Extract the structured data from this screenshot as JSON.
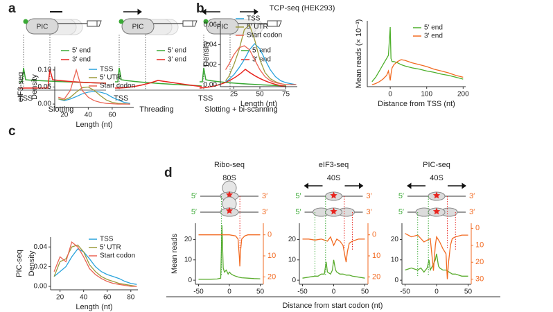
{
  "panel_labels": [
    "a",
    "b",
    "c",
    "d"
  ],
  "panel_a": {
    "items": [
      {
        "caption": "Slotting"
      },
      {
        "caption": "Threading"
      },
      {
        "caption": "Slotting + bi-scanning"
      }
    ],
    "complex_label": "PIC",
    "site_label": "TSS",
    "legend": [
      {
        "name": "5′ end",
        "color": "#3aa935"
      },
      {
        "name": "3′ end",
        "color": "#e8251f"
      }
    ]
  },
  "panel_b": {
    "title": "TCP-seq (HEK293)"
  },
  "panel_d": {
    "xlabel": "Distance from start codon (nt)",
    "strand_labels": [
      "5′",
      "3′"
    ]
  },
  "chart_data": [
    {
      "type": "line",
      "ylabel": "Density",
      "xlabel": "Length (nt)",
      "xlim": [
        12,
        86
      ],
      "ylim": [
        -0.002,
        0.064
      ],
      "xticks": [
        25,
        50,
        75
      ],
      "yticks": [
        {
          "value": 0,
          "label": "0.00"
        },
        0.02,
        0.04,
        0.06
      ],
      "legend": "top-right",
      "x": [
        17,
        20,
        25,
        30,
        35,
        40,
        45,
        50,
        55,
        60,
        65,
        70,
        75,
        80,
        85
      ],
      "series": [
        {
          "name": "TSS",
          "color": "#29a3dc",
          "values": [
            0.003,
            0.005,
            0.01,
            0.017,
            0.025,
            0.035,
            0.041,
            0.036,
            0.025,
            0.015,
            0.008,
            0.004,
            0.002,
            0.001,
            0.0
          ]
        },
        {
          "name": "5′ UTR",
          "color": "#9c9a3c",
          "values": [
            0.004,
            0.008,
            0.02,
            0.035,
            0.055,
            0.06,
            0.045,
            0.025,
            0.012,
            0.006,
            0.003,
            0.001,
            0,
            0,
            0
          ]
        },
        {
          "name": "Start codon",
          "color": "#ea6352",
          "values": [
            0.015,
            0.02,
            0.03,
            0.037,
            0.039,
            0.035,
            0.025,
            0.015,
            0.008,
            0.004,
            0.002,
            0.001,
            0,
            0,
            0
          ]
        }
      ]
    },
    {
      "type": "line",
      "ylabel": "Mean reads (× 10⁻³)",
      "xlabel": "Distance from TSS (nt)",
      "xlim": [
        -63,
        207
      ],
      "ylim": [
        0,
        10.5
      ],
      "xticks": [
        0,
        100,
        200
      ],
      "legend": "top-right",
      "x": [
        -50,
        -40,
        -30,
        -20,
        -10,
        -5,
        0,
        2,
        5,
        10,
        20,
        30,
        40,
        60,
        80,
        100,
        120,
        140,
        160,
        180,
        200
      ],
      "series": [
        {
          "name": "5′ end",
          "color": "#4caf2a",
          "values": [
            0.8,
            1.5,
            2.5,
            3.5,
            4.5,
            5,
            9.5,
            4.5,
            4,
            4,
            3.8,
            3.5,
            3.3,
            3,
            2.8,
            2.5,
            2.3,
            2,
            1.8,
            1.5,
            1.2
          ]
        },
        {
          "name": "3′ end",
          "color": "#f26a21",
          "values": [
            0.3,
            0.5,
            0.8,
            1.2,
            1.8,
            2.5,
            1,
            2,
            3,
            3.5,
            4,
            4.3,
            4.2,
            3.8,
            3.5,
            3.2,
            2.8,
            2.5,
            2.2,
            1.8,
            1.5
          ]
        }
      ]
    },
    {
      "type": "line",
      "title": "eIF3-seq",
      "ylabel": "Density",
      "xlabel": "Length (nt)",
      "xlim": [
        12,
        78
      ],
      "ylim": [
        -0.01,
        0.11
      ],
      "xticks": [
        20,
        40,
        60
      ],
      "yticks": [
        {
          "value": 0,
          "label": "0.00"
        },
        0.05,
        {
          "value": 0.1,
          "label": "0.10"
        }
      ],
      "legend": "top-right",
      "x": [
        15,
        20,
        25,
        30,
        35,
        40,
        45,
        50,
        55,
        60,
        65,
        70,
        75
      ],
      "series": [
        {
          "name": "TSS",
          "color": "#29a3dc",
          "values": [
            0.015,
            0.01,
            0.015,
            0.022,
            0.03,
            0.035,
            0.037,
            0.035,
            0.03,
            0.02,
            0.012,
            0.005,
            0.002
          ]
        },
        {
          "name": "5′ UTR",
          "color": "#9c9a3c",
          "values": [
            0.015,
            0.012,
            0.02,
            0.035,
            0.048,
            0.05,
            0.04,
            0.025,
            0.012,
            0.005,
            0.002,
            0.001,
            0
          ]
        },
        {
          "name": "Start codon",
          "color": "#ea6352",
          "values": [
            0.02,
            0.015,
            0.04,
            0.1,
            0.04,
            0.02,
            0.01,
            0.005,
            0.002,
            0.001,
            0,
            0,
            0
          ]
        }
      ]
    },
    {
      "type": "line",
      "title": "PIC-seq",
      "ylabel": "Density",
      "xlabel": "Length (nt)",
      "xlim": [
        12,
        86
      ],
      "ylim": [
        -0.0035,
        0.05
      ],
      "xticks": [
        20,
        40,
        60,
        80
      ],
      "yticks": [
        {
          "value": 0,
          "label": "0.00"
        },
        0.02,
        0.04
      ],
      "legend": "top-right",
      "x": [
        15,
        20,
        25,
        30,
        35,
        40,
        45,
        50,
        55,
        60,
        65,
        70,
        75,
        80,
        85
      ],
      "series": [
        {
          "name": "TSS",
          "color": "#29a3dc",
          "values": [
            0.01,
            0.015,
            0.02,
            0.03,
            0.038,
            0.035,
            0.028,
            0.02,
            0.015,
            0.012,
            0.01,
            0.008,
            0.005,
            0.003,
            0.002
          ]
        },
        {
          "name": "5′ UTR",
          "color": "#9c9a3c",
          "values": [
            0.01,
            0.025,
            0.028,
            0.04,
            0.042,
            0.035,
            0.022,
            0.015,
            0.01,
            0.007,
            0.005,
            0.003,
            0.002,
            0.001,
            0
          ]
        },
        {
          "name": "Start codon",
          "color": "#ea6352",
          "values": [
            0.015,
            0.03,
            0.025,
            0.045,
            0.04,
            0.03,
            0.018,
            0.012,
            0.008,
            0.005,
            0.003,
            0.002,
            0.001,
            0,
            0
          ]
        }
      ]
    },
    {
      "type": "line",
      "title": "Ribo-seq",
      "subtitle": "80S",
      "arrows": false,
      "ylabel": "Mean reads",
      "xlim": [
        -55,
        55
      ],
      "ylim": [
        -2,
        28
      ],
      "xticks": [
        -50,
        0,
        50
      ],
      "yticks": [
        0,
        10,
        20
      ],
      "y2lim": [
        -5.5,
        23.5
      ],
      "y2ticks": [
        0,
        10,
        20
      ],
      "y2_inverted": true,
      "series": [
        {
          "color": "#5aac2e",
          "x": [
            -50,
            -40,
            -30,
            -20,
            -14,
            -12,
            -10,
            -8,
            -5,
            -2,
            0,
            3,
            6,
            10,
            15,
            20,
            30,
            40,
            50
          ],
          "values": [
            0.5,
            0.5,
            0.5,
            0.6,
            1,
            27,
            6,
            4,
            5,
            3,
            4,
            3,
            2.5,
            2,
            1.5,
            1.2,
            1,
            0.8,
            0.7
          ]
        },
        {
          "color": "#f26a21",
          "axis": "y2",
          "x": [
            -50,
            -40,
            -30,
            -20,
            -10,
            0,
            10,
            14,
            16,
            17,
            18,
            20,
            25,
            30,
            40,
            50
          ],
          "values": [
            0,
            0,
            0,
            0,
            0,
            0,
            0.5,
            2,
            10,
            15,
            8,
            2,
            0.5,
            0,
            0,
            0
          ]
        }
      ]
    },
    {
      "type": "line",
      "title": "eIF3-seq",
      "subtitle": "40S",
      "arrows": true,
      "xlim": [
        -55,
        55
      ],
      "ylim": [
        -2,
        28
      ],
      "xticks": [
        -50,
        0,
        50
      ],
      "yticks": [
        0,
        10,
        20
      ],
      "y2lim": [
        -5.5,
        23.5
      ],
      "y2ticks": [
        0,
        10,
        20
      ],
      "y2_inverted": true,
      "series": [
        {
          "color": "#5aac2e",
          "x": [
            -50,
            -40,
            -30,
            -25,
            -20,
            -15,
            -12,
            -10,
            -5,
            -2,
            0,
            3,
            5,
            10,
            15,
            20,
            25,
            30,
            40,
            50
          ],
          "values": [
            1,
            1.5,
            2,
            2,
            3,
            3,
            9,
            4,
            3,
            5,
            10,
            5,
            4,
            3,
            3,
            2.5,
            2.5,
            2,
            1.5,
            1
          ]
        },
        {
          "color": "#f26a21",
          "axis": "y2",
          "x": [
            -50,
            -40,
            -30,
            -20,
            -10,
            -5,
            0,
            5,
            10,
            15,
            18,
            20,
            22,
            25,
            30,
            40,
            50
          ],
          "values": [
            2,
            2,
            2.5,
            2,
            3,
            1,
            5,
            2,
            3,
            5,
            10,
            13,
            8,
            4,
            3,
            2,
            2
          ]
        }
      ]
    },
    {
      "type": "line",
      "title": "PIC-seq",
      "subtitle": "40S",
      "arrows": true,
      "xlim": [
        -55,
        55
      ],
      "ylim": [
        -2,
        28
      ],
      "xticks": [
        -50,
        0,
        50
      ],
      "yticks": [
        0,
        10,
        20
      ],
      "y2lim": [
        -3,
        33
      ],
      "y2ticks": [
        0,
        10,
        20,
        30
      ],
      "y2_inverted": true,
      "series": [
        {
          "color": "#5aac2e",
          "x": [
            -50,
            -40,
            -30,
            -25,
            -20,
            -15,
            -12,
            -10,
            -5,
            -2,
            0,
            3,
            5,
            10,
            15,
            20,
            25,
            30,
            40,
            50
          ],
          "values": [
            5,
            6,
            5,
            6,
            4,
            6,
            10,
            5,
            8,
            10,
            13,
            7,
            6,
            5,
            5,
            4,
            3,
            3,
            2,
            2
          ]
        },
        {
          "color": "#f26a21",
          "axis": "y2",
          "x": [
            -50,
            -40,
            -30,
            -20,
            -10,
            -5,
            -2,
            0,
            5,
            10,
            15,
            17,
            19,
            22,
            25,
            30,
            40,
            50
          ],
          "values": [
            3,
            5,
            4,
            8,
            6,
            25,
            10,
            5,
            8,
            12,
            15,
            30,
            20,
            10,
            6,
            5,
            4,
            4
          ]
        }
      ]
    }
  ]
}
